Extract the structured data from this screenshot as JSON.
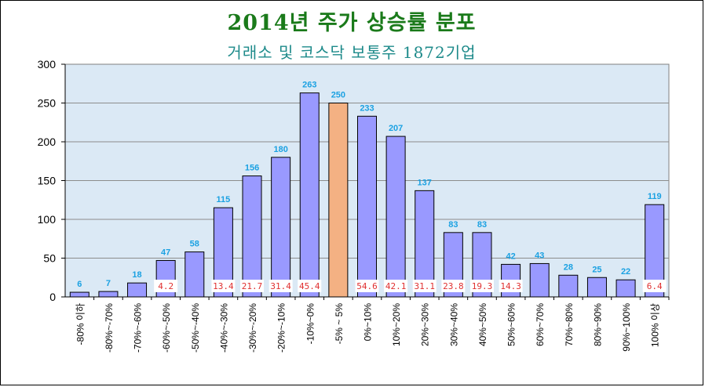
{
  "chart_data": {
    "type": "bar",
    "title": "2014년 주가 상승률 분포",
    "subtitle": "거래소 및 코스닥 보통주 1872기업",
    "xlabel": "",
    "ylabel": "",
    "ylim": [
      0,
      300
    ],
    "yticks": [
      0,
      50,
      100,
      150,
      200,
      250,
      300
    ],
    "grid": true,
    "colors": {
      "bar": "#9999ff",
      "highlight": "#f4b183",
      "plot_bg": "#dbe9f5",
      "value_label": "#1ba1e2",
      "percent_label": "#e03030",
      "title": "#1a7a1a",
      "subtitle": "#1d8a8a"
    },
    "highlight_category": "-5% ~ 5%",
    "categories": [
      "-80% 이하",
      "-80%~-70%",
      "-70%~-60%",
      "-60%~-50%",
      "-50%~-40%",
      "-40%~-30%",
      "-30%~-20%",
      "-20%~-10%",
      "-10%~0%",
      "-5% ~ 5%",
      "0%~10%",
      "10%~20%",
      "20%~30%",
      "30%~40%",
      "40%~50%",
      "50%~60%",
      "60%~70%",
      "70%~80%",
      "80%~90%",
      "90%~100%",
      "100% 이상"
    ],
    "values": [
      6,
      7,
      18,
      47,
      58,
      115,
      156,
      180,
      263,
      250,
      233,
      207,
      137,
      83,
      83,
      42,
      43,
      28,
      25,
      22,
      119
    ],
    "cumulative_percent": [
      "",
      "",
      "",
      "4.2",
      "",
      "13.4",
      "21.7",
      "31.4",
      "45.4",
      "",
      "54.6",
      "42.1",
      "31.1",
      "23.8",
      "19.3",
      "14.3",
      "",
      "",
      "",
      "",
      "6.4"
    ]
  }
}
